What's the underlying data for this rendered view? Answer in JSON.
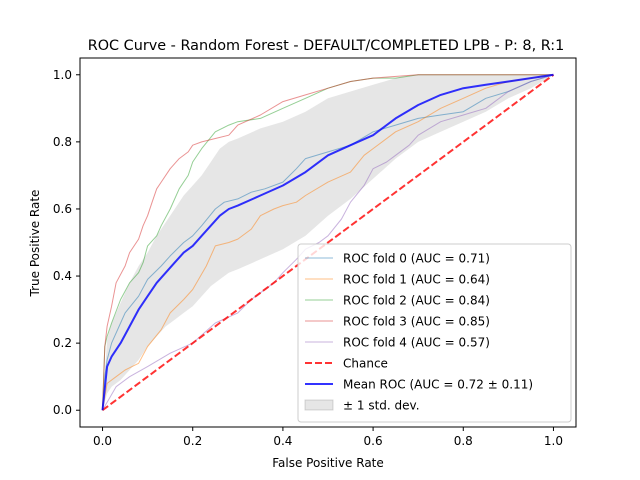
{
  "chart_data": {
    "type": "line",
    "title": "ROC Curve - Random Forest - DEFAULT/COMPLETED LPB - P: 8, R:1",
    "xlabel": "False Positive Rate",
    "ylabel": "True Positive Rate",
    "xlim": [
      -0.05,
      1.05
    ],
    "ylim": [
      -0.05,
      1.05
    ],
    "xticks": [
      "0.0",
      "0.2",
      "0.4",
      "0.6",
      "0.8",
      "1.0"
    ],
    "yticks": [
      "0.0",
      "0.2",
      "0.4",
      "0.6",
      "0.8",
      "1.0"
    ],
    "grid": false,
    "legend_position": "lower-right",
    "series": [
      {
        "name": "ROC fold 0 (AUC = 0.71)",
        "color": "#1f77b4",
        "style": "thin",
        "x": [
          0,
          0.005,
          0.01,
          0.02,
          0.04,
          0.05,
          0.08,
          0.1,
          0.13,
          0.15,
          0.18,
          0.2,
          0.22,
          0.25,
          0.27,
          0.3,
          0.33,
          0.36,
          0.4,
          0.43,
          0.45,
          0.5,
          0.55,
          0.6,
          0.65,
          0.7,
          0.75,
          0.8,
          0.85,
          0.9,
          0.95,
          1.0
        ],
        "y": [
          0,
          0.1,
          0.15,
          0.2,
          0.26,
          0.29,
          0.34,
          0.39,
          0.43,
          0.46,
          0.5,
          0.52,
          0.55,
          0.6,
          0.62,
          0.63,
          0.65,
          0.66,
          0.68,
          0.72,
          0.75,
          0.77,
          0.79,
          0.83,
          0.85,
          0.87,
          0.88,
          0.89,
          0.93,
          0.95,
          0.98,
          1.0
        ]
      },
      {
        "name": "ROC fold 1 (AUC = 0.64)",
        "color": "#ff7f0e",
        "style": "thin",
        "x": [
          0,
          0.01,
          0.03,
          0.05,
          0.08,
          0.1,
          0.13,
          0.15,
          0.18,
          0.2,
          0.23,
          0.25,
          0.28,
          0.3,
          0.33,
          0.35,
          0.38,
          0.4,
          0.43,
          0.45,
          0.5,
          0.55,
          0.58,
          0.6,
          0.65,
          0.7,
          0.75,
          0.8,
          0.85,
          0.9,
          0.95,
          1.0
        ],
        "y": [
          0,
          0.08,
          0.1,
          0.12,
          0.14,
          0.19,
          0.24,
          0.29,
          0.33,
          0.36,
          0.43,
          0.49,
          0.5,
          0.51,
          0.54,
          0.58,
          0.6,
          0.61,
          0.62,
          0.64,
          0.68,
          0.71,
          0.76,
          0.78,
          0.83,
          0.86,
          0.9,
          0.93,
          0.96,
          0.98,
          0.99,
          1.0
        ]
      },
      {
        "name": "ROC fold 2 (AUC = 0.84)",
        "color": "#2ca02c",
        "style": "thin",
        "x": [
          0,
          0.005,
          0.01,
          0.02,
          0.04,
          0.06,
          0.08,
          0.09,
          0.1,
          0.12,
          0.13,
          0.15,
          0.17,
          0.19,
          0.2,
          0.22,
          0.25,
          0.28,
          0.3,
          0.35,
          0.4,
          0.45,
          0.5,
          0.55,
          0.6,
          0.65,
          0.7,
          0.75,
          0.8,
          0.85,
          0.9,
          1.0
        ],
        "y": [
          0,
          0.19,
          0.22,
          0.26,
          0.33,
          0.38,
          0.41,
          0.44,
          0.49,
          0.52,
          0.55,
          0.6,
          0.66,
          0.7,
          0.74,
          0.78,
          0.83,
          0.85,
          0.86,
          0.87,
          0.9,
          0.93,
          0.96,
          0.98,
          0.99,
          0.99,
          1.0,
          1.0,
          1.0,
          1.0,
          1.0,
          1.0
        ]
      },
      {
        "name": "ROC fold 3 (AUC = 0.85)",
        "color": "#d62728",
        "style": "thin",
        "x": [
          0,
          0.005,
          0.01,
          0.02,
          0.03,
          0.05,
          0.06,
          0.08,
          0.09,
          0.1,
          0.11,
          0.12,
          0.13,
          0.15,
          0.17,
          0.19,
          0.2,
          0.22,
          0.25,
          0.28,
          0.3,
          0.35,
          0.4,
          0.45,
          0.5,
          0.55,
          0.6,
          0.7,
          0.8,
          0.9,
          1.0
        ],
        "y": [
          0,
          0.19,
          0.25,
          0.31,
          0.38,
          0.43,
          0.47,
          0.51,
          0.55,
          0.58,
          0.62,
          0.66,
          0.68,
          0.72,
          0.75,
          0.77,
          0.79,
          0.8,
          0.81,
          0.82,
          0.85,
          0.88,
          0.92,
          0.94,
          0.96,
          0.98,
          0.99,
          1.0,
          1.0,
          1.0,
          1.0
        ]
      },
      {
        "name": "ROC fold 4 (AUC = 0.57)",
        "color": "#9467bd",
        "style": "thin",
        "x": [
          0,
          0.03,
          0.06,
          0.1,
          0.15,
          0.2,
          0.25,
          0.3,
          0.33,
          0.35,
          0.38,
          0.4,
          0.43,
          0.45,
          0.48,
          0.5,
          0.53,
          0.55,
          0.58,
          0.6,
          0.63,
          0.65,
          0.68,
          0.7,
          0.75,
          0.8,
          0.85,
          0.9,
          0.95,
          1.0
        ],
        "y": [
          0,
          0.07,
          0.1,
          0.13,
          0.17,
          0.2,
          0.26,
          0.29,
          0.33,
          0.35,
          0.38,
          0.41,
          0.45,
          0.48,
          0.5,
          0.52,
          0.57,
          0.62,
          0.67,
          0.72,
          0.74,
          0.76,
          0.79,
          0.82,
          0.86,
          0.88,
          0.9,
          0.95,
          0.98,
          1.0
        ]
      },
      {
        "name": "Chance",
        "color": "#ff0000",
        "style": "dashed",
        "x": [
          0,
          1
        ],
        "y": [
          0,
          1
        ]
      },
      {
        "name": "Mean ROC (AUC = 0.72 ± 0.11)",
        "color": "#0000ff",
        "style": "thick",
        "x": [
          0,
          0.01,
          0.02,
          0.04,
          0.06,
          0.08,
          0.1,
          0.12,
          0.14,
          0.16,
          0.18,
          0.2,
          0.22,
          0.24,
          0.26,
          0.28,
          0.3,
          0.35,
          0.4,
          0.45,
          0.5,
          0.55,
          0.6,
          0.65,
          0.7,
          0.75,
          0.8,
          0.85,
          0.9,
          0.95,
          1.0
        ],
        "y": [
          0,
          0.13,
          0.16,
          0.2,
          0.25,
          0.3,
          0.34,
          0.38,
          0.41,
          0.44,
          0.47,
          0.49,
          0.52,
          0.55,
          0.58,
          0.6,
          0.61,
          0.64,
          0.67,
          0.71,
          0.76,
          0.79,
          0.82,
          0.87,
          0.91,
          0.94,
          0.96,
          0.97,
          0.98,
          0.99,
          1.0
        ]
      }
    ],
    "band": {
      "name": "± 1 std. dev.",
      "color": "#808080",
      "x": [
        0,
        0.01,
        0.02,
        0.04,
        0.06,
        0.08,
        0.1,
        0.12,
        0.14,
        0.16,
        0.18,
        0.2,
        0.22,
        0.24,
        0.26,
        0.28,
        0.3,
        0.35,
        0.4,
        0.45,
        0.5,
        0.55,
        0.6,
        0.65,
        0.7,
        0.75,
        0.8,
        0.85,
        0.9,
        0.95,
        1.0
      ],
      "upper": [
        0,
        0.21,
        0.26,
        0.32,
        0.38,
        0.43,
        0.47,
        0.52,
        0.56,
        0.6,
        0.64,
        0.67,
        0.7,
        0.74,
        0.78,
        0.8,
        0.81,
        0.84,
        0.86,
        0.89,
        0.93,
        0.95,
        0.97,
        0.99,
        1.0,
        1.0,
        1.0,
        1.0,
        1.0,
        1.0,
        1.0
      ],
      "lower": [
        0,
        0.05,
        0.07,
        0.09,
        0.12,
        0.15,
        0.19,
        0.22,
        0.25,
        0.27,
        0.29,
        0.31,
        0.34,
        0.37,
        0.39,
        0.41,
        0.42,
        0.45,
        0.48,
        0.52,
        0.58,
        0.63,
        0.69,
        0.75,
        0.8,
        0.83,
        0.86,
        0.89,
        0.93,
        0.96,
        1.0
      ]
    }
  }
}
